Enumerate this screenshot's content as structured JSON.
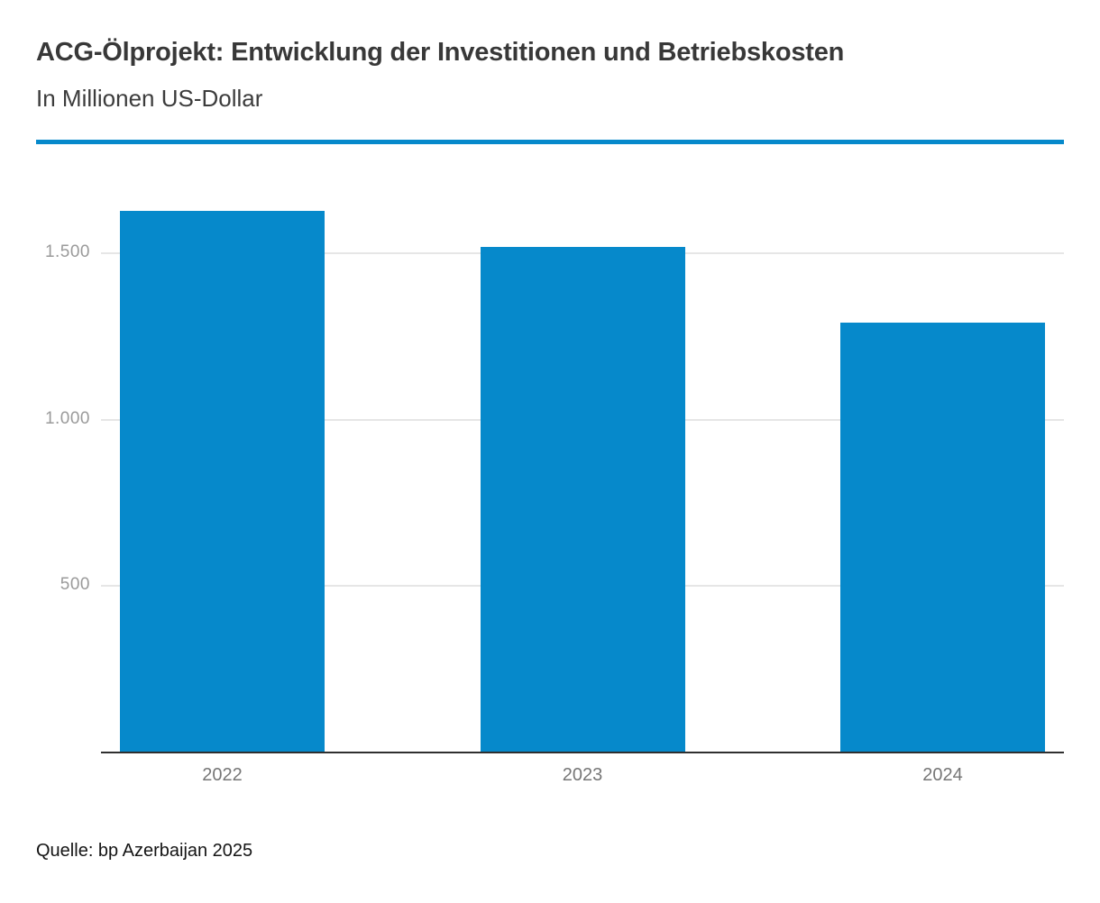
{
  "header": {
    "title": "ACG-Ölprojekt: Entwicklung der Investitionen und Betriebskosten",
    "subtitle": "In Millionen US-Dollar"
  },
  "footer": {
    "source": "Quelle: bp Azerbaijan 2025"
  },
  "colors": {
    "accent_blue": "#0689cb",
    "bar_blue": "#0689cb",
    "axis_line": "#2f2f2f",
    "gridline": "#e6e6e6",
    "y_tick_label": "#9a9a9a",
    "x_tick_label": "#767676",
    "title_text": "#383838",
    "source_text": "#141414"
  },
  "chart_data": {
    "type": "bar",
    "title": "ACG-Ölprojekt: Entwicklung der Investitionen und Betriebskosten",
    "subtitle": "In Millionen US-Dollar",
    "source": "Quelle: bp Azerbaijan 2025",
    "categories": [
      "2022",
      "2023",
      "2024"
    ],
    "values": [
      1628,
      1520,
      1292
    ],
    "ylabel": "Millionen US-Dollar",
    "ylim": [
      0,
      1700
    ],
    "yticks": [
      {
        "value": 500,
        "label": "500"
      },
      {
        "value": 1000,
        "label": "1.000"
      },
      {
        "value": 1500,
        "label": "1.500"
      }
    ],
    "grid": "horizontal",
    "legend": "none",
    "bar_color": "#0689cb"
  }
}
